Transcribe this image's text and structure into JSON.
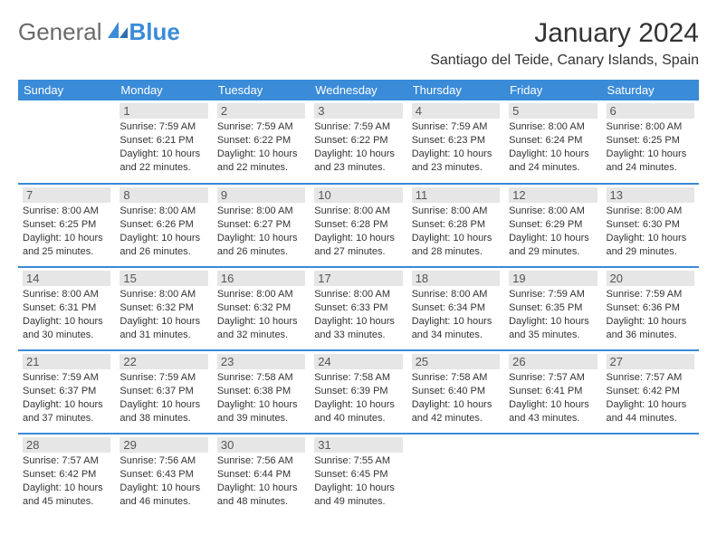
{
  "brand": {
    "part1": "General",
    "part2": "Blue"
  },
  "title": "January 2024",
  "location": "Santiago del Teide, Canary Islands, Spain",
  "colors": {
    "header_bg": "#3a8bd8",
    "header_fg": "#ffffff",
    "daynum_bg": "#e6e6e6",
    "border": "#3a8bd8",
    "logo_blue": "#3a8bd8",
    "logo_gray": "#6a6a6a"
  },
  "weekdays": [
    "Sunday",
    "Monday",
    "Tuesday",
    "Wednesday",
    "Thursday",
    "Friday",
    "Saturday"
  ],
  "weeks": [
    [
      null,
      {
        "n": "1",
        "sr": "7:59 AM",
        "ss": "6:21 PM",
        "dl": "10 hours and 22 minutes."
      },
      {
        "n": "2",
        "sr": "7:59 AM",
        "ss": "6:22 PM",
        "dl": "10 hours and 22 minutes."
      },
      {
        "n": "3",
        "sr": "7:59 AM",
        "ss": "6:22 PM",
        "dl": "10 hours and 23 minutes."
      },
      {
        "n": "4",
        "sr": "7:59 AM",
        "ss": "6:23 PM",
        "dl": "10 hours and 23 minutes."
      },
      {
        "n": "5",
        "sr": "8:00 AM",
        "ss": "6:24 PM",
        "dl": "10 hours and 24 minutes."
      },
      {
        "n": "6",
        "sr": "8:00 AM",
        "ss": "6:25 PM",
        "dl": "10 hours and 24 minutes."
      }
    ],
    [
      {
        "n": "7",
        "sr": "8:00 AM",
        "ss": "6:25 PM",
        "dl": "10 hours and 25 minutes."
      },
      {
        "n": "8",
        "sr": "8:00 AM",
        "ss": "6:26 PM",
        "dl": "10 hours and 26 minutes."
      },
      {
        "n": "9",
        "sr": "8:00 AM",
        "ss": "6:27 PM",
        "dl": "10 hours and 26 minutes."
      },
      {
        "n": "10",
        "sr": "8:00 AM",
        "ss": "6:28 PM",
        "dl": "10 hours and 27 minutes."
      },
      {
        "n": "11",
        "sr": "8:00 AM",
        "ss": "6:28 PM",
        "dl": "10 hours and 28 minutes."
      },
      {
        "n": "12",
        "sr": "8:00 AM",
        "ss": "6:29 PM",
        "dl": "10 hours and 29 minutes."
      },
      {
        "n": "13",
        "sr": "8:00 AM",
        "ss": "6:30 PM",
        "dl": "10 hours and 29 minutes."
      }
    ],
    [
      {
        "n": "14",
        "sr": "8:00 AM",
        "ss": "6:31 PM",
        "dl": "10 hours and 30 minutes."
      },
      {
        "n": "15",
        "sr": "8:00 AM",
        "ss": "6:32 PM",
        "dl": "10 hours and 31 minutes."
      },
      {
        "n": "16",
        "sr": "8:00 AM",
        "ss": "6:32 PM",
        "dl": "10 hours and 32 minutes."
      },
      {
        "n": "17",
        "sr": "8:00 AM",
        "ss": "6:33 PM",
        "dl": "10 hours and 33 minutes."
      },
      {
        "n": "18",
        "sr": "8:00 AM",
        "ss": "6:34 PM",
        "dl": "10 hours and 34 minutes."
      },
      {
        "n": "19",
        "sr": "7:59 AM",
        "ss": "6:35 PM",
        "dl": "10 hours and 35 minutes."
      },
      {
        "n": "20",
        "sr": "7:59 AM",
        "ss": "6:36 PM",
        "dl": "10 hours and 36 minutes."
      }
    ],
    [
      {
        "n": "21",
        "sr": "7:59 AM",
        "ss": "6:37 PM",
        "dl": "10 hours and 37 minutes."
      },
      {
        "n": "22",
        "sr": "7:59 AM",
        "ss": "6:37 PM",
        "dl": "10 hours and 38 minutes."
      },
      {
        "n": "23",
        "sr": "7:58 AM",
        "ss": "6:38 PM",
        "dl": "10 hours and 39 minutes."
      },
      {
        "n": "24",
        "sr": "7:58 AM",
        "ss": "6:39 PM",
        "dl": "10 hours and 40 minutes."
      },
      {
        "n": "25",
        "sr": "7:58 AM",
        "ss": "6:40 PM",
        "dl": "10 hours and 42 minutes."
      },
      {
        "n": "26",
        "sr": "7:57 AM",
        "ss": "6:41 PM",
        "dl": "10 hours and 43 minutes."
      },
      {
        "n": "27",
        "sr": "7:57 AM",
        "ss": "6:42 PM",
        "dl": "10 hours and 44 minutes."
      }
    ],
    [
      {
        "n": "28",
        "sr": "7:57 AM",
        "ss": "6:42 PM",
        "dl": "10 hours and 45 minutes."
      },
      {
        "n": "29",
        "sr": "7:56 AM",
        "ss": "6:43 PM",
        "dl": "10 hours and 46 minutes."
      },
      {
        "n": "30",
        "sr": "7:56 AM",
        "ss": "6:44 PM",
        "dl": "10 hours and 48 minutes."
      },
      {
        "n": "31",
        "sr": "7:55 AM",
        "ss": "6:45 PM",
        "dl": "10 hours and 49 minutes."
      },
      null,
      null,
      null
    ]
  ],
  "labels": {
    "sunrise": "Sunrise:",
    "sunset": "Sunset:",
    "daylight": "Daylight:"
  }
}
